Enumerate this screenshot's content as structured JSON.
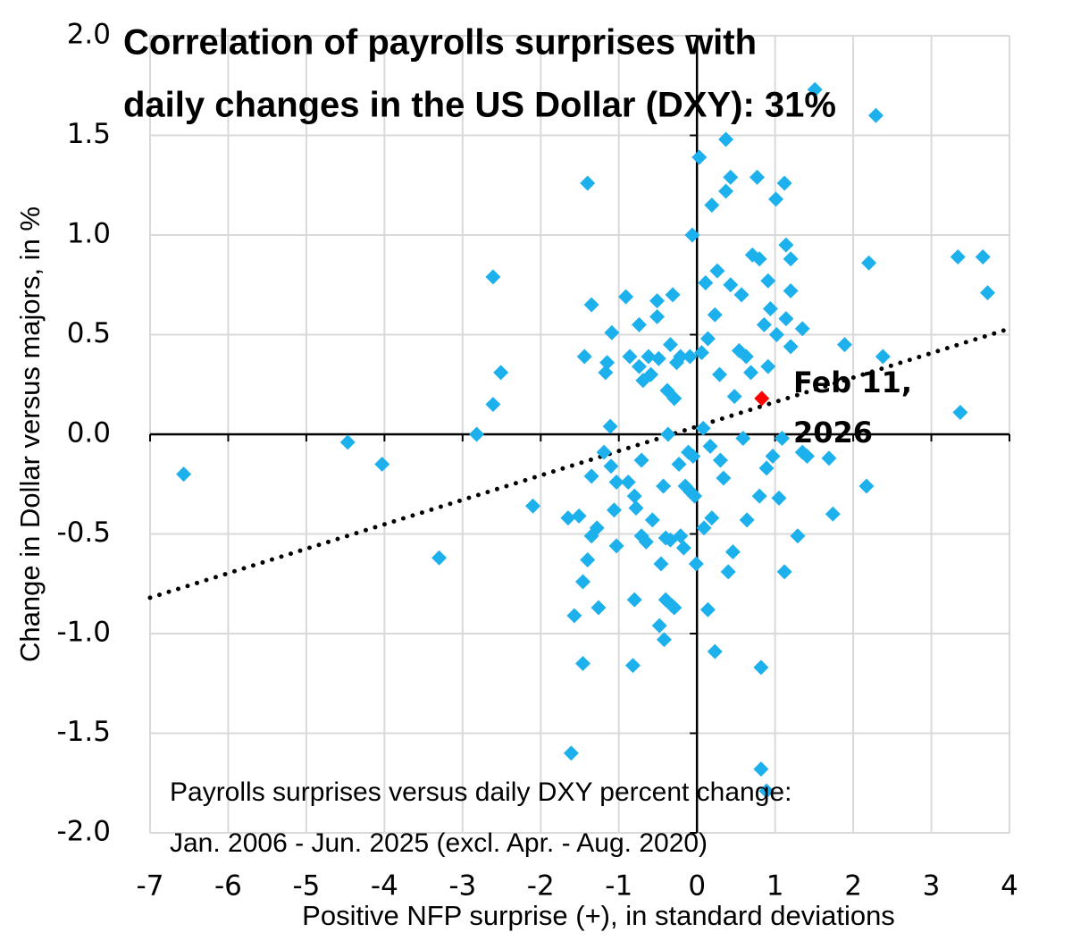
{
  "chart_data": {
    "type": "scatter",
    "title": [
      "Correlation of payrolls surprises with",
      "daily changes in the US Dollar (DXY): 31%"
    ],
    "annotation": [
      "Payrolls surprises versus daily DXY percent change:",
      "Jan. 2006 - Jun. 2025 (excl. Apr. - Aug. 2020)"
    ],
    "x_label": "Positive NFP surprise (+), in standard deviations",
    "y_label": "Change in Dollar versus majors, in %",
    "color": "#1cb0ec",
    "x": [
      -6.57,
      -4.47,
      -4.03,
      -3.3,
      -2.82,
      -2.61,
      -2.61,
      -2.51,
      -2.1,
      -1.61,
      -1.57,
      -1.65,
      -1.51,
      -1.46,
      -1.46,
      -1.4,
      -1.35,
      -1.44,
      -1.4,
      -1.35,
      -1.28,
      -1.26,
      -1.35,
      -1.19,
      -1.17,
      -1.15,
      -1.11,
      -1.09,
      -1.1,
      -1.06,
      -1.03,
      -1.03,
      -0.91,
      -0.88,
      -0.86,
      -0.82,
      -0.8,
      -0.8,
      -0.78,
      -0.74,
      -0.74,
      -0.71,
      -0.71,
      -0.69,
      -0.65,
      -0.62,
      -0.59,
      -0.57,
      -0.51,
      -0.51,
      -0.49,
      -0.48,
      -0.46,
      -0.42,
      -0.43,
      -0.4,
      -0.4,
      -0.38,
      -0.37,
      -0.34,
      -0.34,
      -0.32,
      -0.29,
      -0.31,
      -0.29,
      -0.26,
      -0.23,
      -0.21,
      -0.21,
      -0.17,
      -0.15,
      -0.11,
      -0.09,
      -0.08,
      -0.05,
      -0.03,
      -0.01,
      -0.06,
      0.03,
      0.06,
      0.08,
      0.09,
      0.11,
      0.14,
      0.14,
      0.17,
      0.19,
      0.19,
      0.23,
      0.23,
      0.26,
      0.29,
      0.3,
      0.34,
      0.37,
      0.37,
      0.4,
      0.43,
      0.43,
      0.46,
      0.48,
      0.54,
      0.57,
      0.59,
      0.63,
      0.64,
      0.69,
      0.71,
      0.77,
      0.8,
      0.8,
      0.82,
      0.82,
      0.86,
      0.89,
      0.91,
      0.91,
      0.94,
      0.97,
      1.01,
      1.02,
      1.05,
      1.09,
      1.12,
      1.12,
      1.14,
      1.14,
      1.2,
      1.2,
      1.2,
      1.29,
      1.35,
      1.35,
      1.41,
      1.51,
      1.69,
      1.74,
      1.89,
      2.17,
      2.2,
      2.29,
      2.38,
      3.34,
      3.37,
      3.66,
      3.72,
      0.89
    ],
    "values": [
      -0.2,
      -0.04,
      -0.15,
      -0.62,
      0.0,
      0.15,
      0.79,
      0.31,
      -0.36,
      -1.6,
      -0.91,
      -0.42,
      -0.41,
      -1.15,
      -0.74,
      1.26,
      0.65,
      0.39,
      -0.63,
      -0.51,
      -0.47,
      -0.87,
      -0.21,
      -0.09,
      0.31,
      0.36,
      0.04,
      0.51,
      -0.16,
      -0.38,
      -0.56,
      -0.24,
      0.69,
      -0.24,
      0.39,
      -1.16,
      -0.83,
      -0.31,
      -0.37,
      0.55,
      0.34,
      -0.51,
      -0.13,
      0.27,
      -0.54,
      0.39,
      0.3,
      -0.43,
      0.67,
      0.59,
      0.38,
      -0.96,
      -0.65,
      -1.03,
      -0.26,
      -0.52,
      -0.83,
      0.22,
      0.0,
      0.45,
      -0.53,
      -0.86,
      -0.87,
      0.7,
      0.18,
      0.36,
      -0.15,
      0.39,
      -0.51,
      -0.57,
      -0.26,
      -0.09,
      0.39,
      -0.29,
      -0.11,
      -0.31,
      -0.65,
      1.0,
      1.39,
      0.41,
      0.03,
      -0.47,
      0.76,
      -0.88,
      0.48,
      -0.06,
      -0.42,
      1.15,
      -1.09,
      0.6,
      0.82,
      0.3,
      -0.13,
      -0.22,
      1.22,
      1.48,
      -0.69,
      1.29,
      0.75,
      -0.59,
      0.19,
      0.42,
      0.7,
      -0.02,
      0.39,
      -0.43,
      0.31,
      0.9,
      1.29,
      0.88,
      -0.31,
      -1.17,
      -1.68,
      0.55,
      -0.17,
      0.77,
      0.34,
      0.63,
      -0.11,
      1.18,
      0.5,
      -0.32,
      -0.02,
      1.26,
      -0.69,
      0.95,
      0.58,
      0.88,
      0.72,
      0.44,
      -0.51,
      0.53,
      -0.09,
      -0.11,
      1.73,
      -0.12,
      -0.4,
      0.45,
      -0.26,
      0.86,
      1.6,
      0.39,
      0.89,
      0.11,
      0.89,
      0.71,
      -1.79
    ],
    "highlight": {
      "x": 0.83,
      "y": 0.18,
      "label": [
        "Feb 11,",
        "2026"
      ],
      "color": "#ff0000"
    },
    "trendline": {
      "x": [
        -7,
        4
      ],
      "y": [
        -0.82,
        0.53
      ]
    },
    "xlim": [
      -7,
      4
    ],
    "ylim": [
      -2,
      2
    ],
    "xticks": [
      -7,
      -6,
      -5,
      -4,
      -3,
      -2,
      -1,
      0,
      1,
      2,
      3,
      4
    ],
    "yticks": [
      {
        "value": 2,
        "label": "2.0"
      },
      {
        "value": 1.5,
        "label": "1.5"
      },
      {
        "value": 1,
        "label": "1.0"
      },
      {
        "value": 0.5,
        "label": "0.5"
      },
      {
        "value": 0,
        "label": "0.0"
      },
      {
        "value": -0.5,
        "label": "-0.5"
      },
      {
        "value": -1,
        "label": "-1.0"
      },
      {
        "value": -1.5,
        "label": "-1.5"
      },
      {
        "value": -2,
        "label": "-2.0"
      }
    ],
    "grid": true
  }
}
